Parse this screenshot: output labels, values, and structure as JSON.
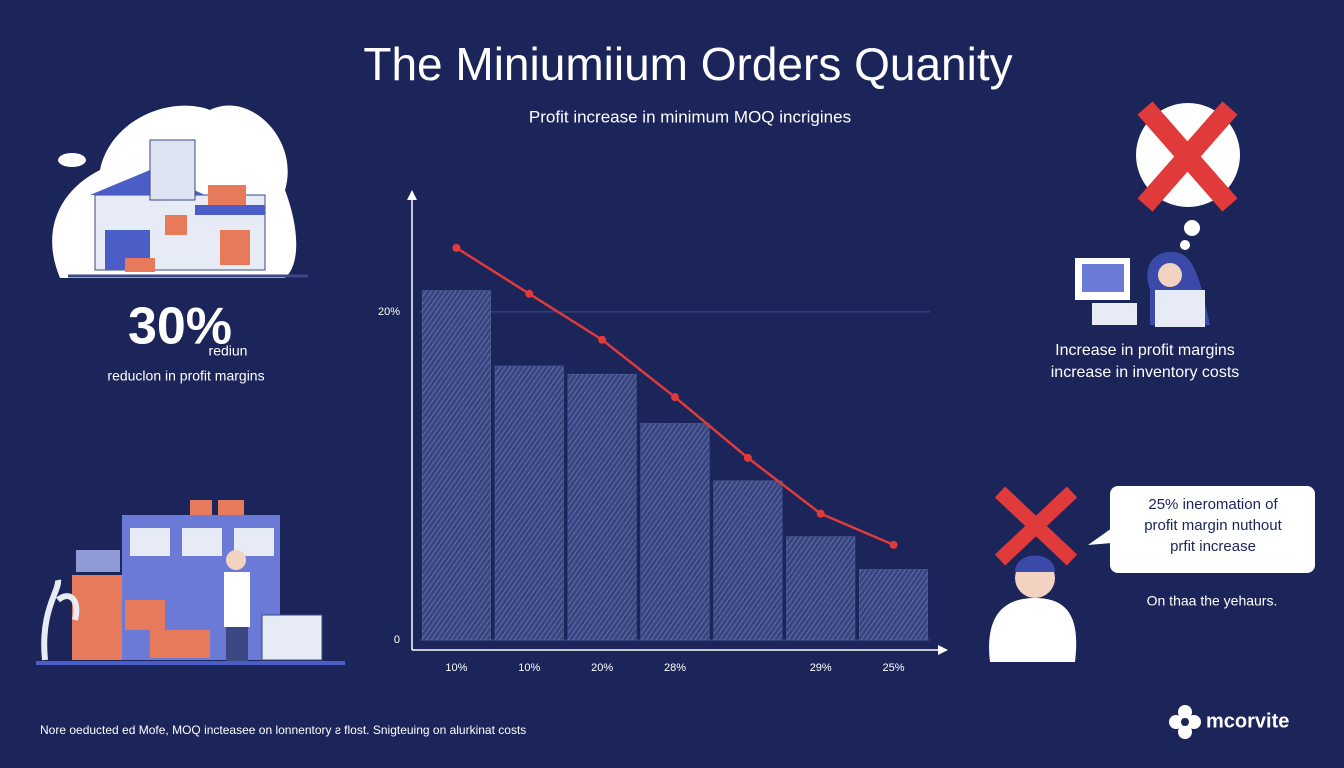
{
  "header": {
    "title": "The Miniumiium Orders Quanity",
    "subtitle": "Profit increase  in minimum MOQ incrigines"
  },
  "left_stat": {
    "value": "30%",
    "suffix": "rediun",
    "caption": "reduclon in profit margins"
  },
  "right_text": {
    "line1": "Increase in profit margins",
    "line2": "increase in inventory costs"
  },
  "callout": {
    "lines": [
      "25% ineromation of",
      "profit margin nuthout",
      "prfit increase"
    ],
    "note": "On thaa the yehaurs."
  },
  "footer": {
    "note": "Nore oeducted ed Mofe, MOQ incteasee on lonnentory ƨ flost. Snigteuing on alurkinat costs",
    "logo": "mcorvite"
  },
  "chart_data": {
    "type": "combo",
    "categories": [
      "10%",
      "10%",
      "20%",
      "28%",
      null,
      "29%",
      "25%"
    ],
    "series": [
      {
        "type": "bar",
        "color": "#5d6ba6",
        "values": [
          21.3,
          16.7,
          16.2,
          13.2,
          9.7,
          6.3,
          4.3
        ]
      },
      {
        "type": "line",
        "color": "#e03a3a",
        "values": [
          23.9,
          21.1,
          18.3,
          14.8,
          11.1,
          7.7,
          5.8
        ]
      }
    ],
    "ylim": [
      0,
      27
    ],
    "yticks": [
      0,
      {
        "value": 20,
        "label": "20%"
      }
    ],
    "grid": true
  }
}
